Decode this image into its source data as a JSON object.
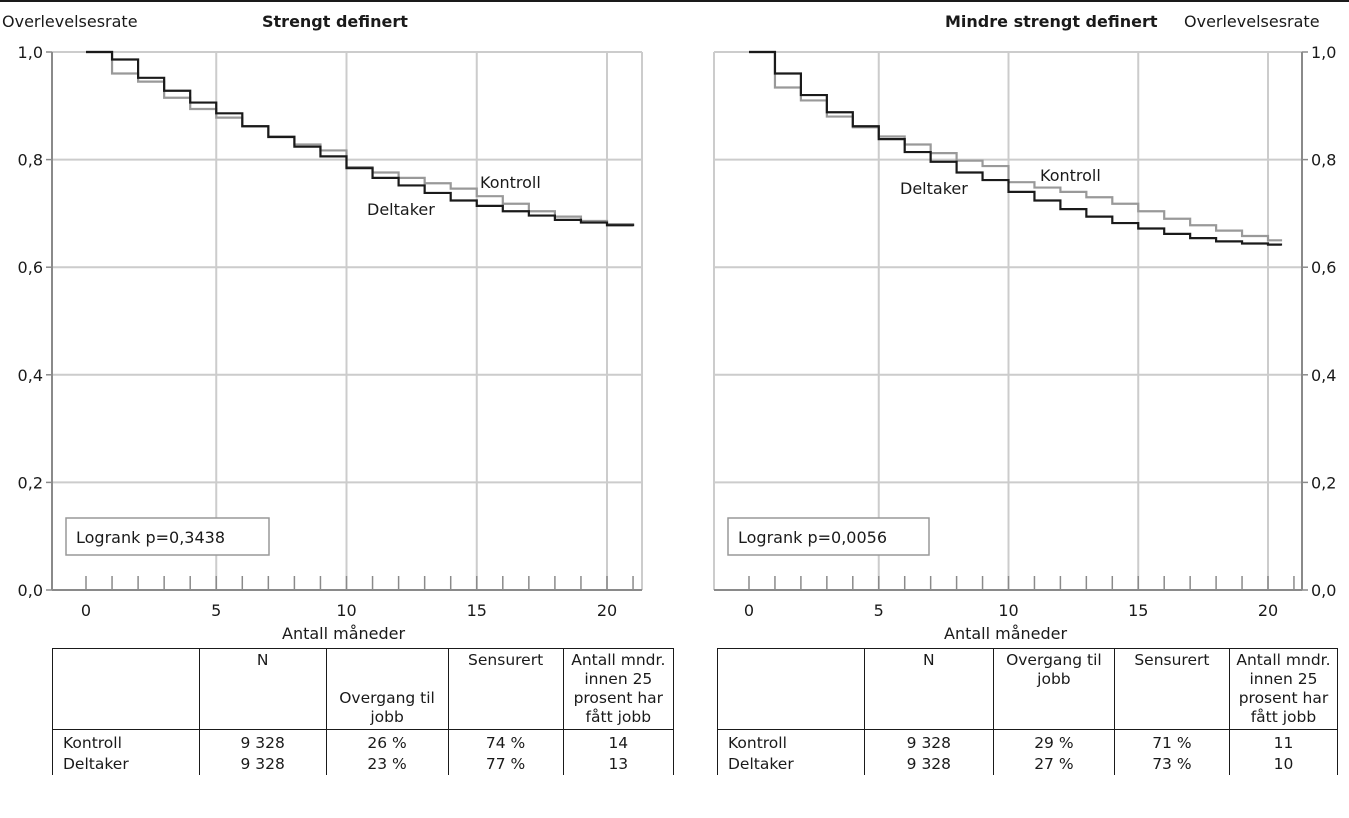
{
  "chart_data": [
    {
      "type": "line",
      "title": "Strengt definert",
      "ylabel": "Overlevelsesrate",
      "xlabel": "Antall måneder",
      "xlim": [
        -1,
        21
      ],
      "ylim": [
        0,
        1.0
      ],
      "xticks": [
        0,
        5,
        10,
        15,
        20
      ],
      "xtick_labels": [
        "0",
        "5",
        "10",
        "15",
        "20"
      ],
      "yticks": [
        0,
        0.2,
        0.4,
        0.6,
        0.8,
        1.0
      ],
      "ytick_labels": [
        "0,0",
        "0,2",
        "0,4",
        "0,6",
        "0,8",
        "1,0"
      ],
      "grid": true,
      "series": [
        {
          "name": "Kontroll",
          "color": "#999999",
          "x": [
            0,
            1,
            2,
            3,
            4,
            5,
            6,
            7,
            8,
            9,
            10,
            11,
            12,
            13,
            14,
            15,
            16,
            17,
            18,
            19,
            20,
            21
          ],
          "y": [
            1.0,
            0.96,
            0.945,
            0.915,
            0.894,
            0.878,
            0.862,
            0.843,
            0.828,
            0.817,
            0.786,
            0.776,
            0.766,
            0.756,
            0.746,
            0.732,
            0.718,
            0.704,
            0.694,
            0.686,
            0.68,
            0.677
          ]
        },
        {
          "name": "Deltaker",
          "color": "#1a1a1a",
          "x": [
            0,
            1,
            2,
            3,
            4,
            5,
            6,
            7,
            8,
            9,
            10,
            11,
            12,
            13,
            14,
            15,
            16,
            17,
            18,
            19,
            20,
            21
          ],
          "y": [
            1.0,
            0.986,
            0.952,
            0.928,
            0.906,
            0.886,
            0.862,
            0.842,
            0.824,
            0.806,
            0.784,
            0.766,
            0.752,
            0.738,
            0.724,
            0.714,
            0.704,
            0.696,
            0.688,
            0.683,
            0.678,
            0.676
          ]
        }
      ],
      "annotations": {
        "kontroll": "Kontroll",
        "deltaker": "Deltaker",
        "logrank": "Logrank p=0,3438"
      }
    },
    {
      "type": "line",
      "title": "Mindre strengt definert",
      "ylabel": "Overlevelsesrate",
      "xlabel": "Antall måneder",
      "xlim": [
        -1,
        21
      ],
      "ylim": [
        0,
        1.0
      ],
      "xticks": [
        0,
        5,
        10,
        15,
        20
      ],
      "xtick_labels": [
        "0",
        "5",
        "10",
        "15",
        "20"
      ],
      "yticks": [
        0,
        0.2,
        0.4,
        0.6,
        0.8,
        1.0
      ],
      "ytick_labels": [
        "0,0",
        "0,2",
        "0,4",
        "0,6",
        "0,8",
        "1,0"
      ],
      "grid": true,
      "series": [
        {
          "name": "Kontroll",
          "color": "#999999",
          "x": [
            0,
            1,
            2,
            3,
            4,
            5,
            6,
            7,
            8,
            9,
            10,
            11,
            12,
            13,
            14,
            15,
            16,
            17,
            18,
            19,
            20,
            20.5
          ],
          "y": [
            1.0,
            0.934,
            0.91,
            0.88,
            0.86,
            0.843,
            0.828,
            0.812,
            0.798,
            0.788,
            0.758,
            0.748,
            0.74,
            0.73,
            0.718,
            0.704,
            0.69,
            0.678,
            0.668,
            0.658,
            0.65,
            0.648
          ]
        },
        {
          "name": "Deltaker",
          "color": "#1a1a1a",
          "x": [
            0,
            1,
            2,
            3,
            4,
            5,
            6,
            7,
            8,
            9,
            10,
            11,
            12,
            13,
            14,
            15,
            16,
            17,
            18,
            19,
            20,
            20.5
          ],
          "y": [
            1.0,
            0.96,
            0.92,
            0.888,
            0.862,
            0.838,
            0.814,
            0.796,
            0.776,
            0.762,
            0.74,
            0.724,
            0.708,
            0.694,
            0.682,
            0.672,
            0.662,
            0.654,
            0.648,
            0.644,
            0.642,
            0.64
          ]
        }
      ],
      "annotations": {
        "kontroll": "Kontroll",
        "deltaker": "Deltaker",
        "logrank": "Logrank p=0,0056"
      }
    }
  ],
  "tables": [
    {
      "headers": [
        "",
        "N",
        "Overgang til jobb",
        "Sensurert",
        "Antall mndr. innen 25 prosent har fått jobb"
      ],
      "rows": [
        {
          "label": "Kontroll",
          "n": "9 328",
          "overgang": "26 %",
          "sensurert": "74 %",
          "mndr": "14"
        },
        {
          "label": "Deltaker",
          "n": "9 328",
          "overgang": "23 %",
          "sensurert": "77 %",
          "mndr": "13"
        }
      ]
    },
    {
      "headers": [
        "",
        "N",
        "Overgang til jobb",
        "Sensurert",
        "Antall mndr. innen 25 prosent har fått jobb"
      ],
      "rows": [
        {
          "label": "Kontroll",
          "n": "9 328",
          "overgang": "29 %",
          "sensurert": "71 %",
          "mndr": "11"
        },
        {
          "label": "Deltaker",
          "n": "9 328",
          "overgang": "27 %",
          "sensurert": "73 %",
          "mndr": "10"
        }
      ]
    }
  ],
  "labels": {
    "left_ylabel": "Overlevelsesrate",
    "right_ylabel": "Overlevelsesrate",
    "left_title": "Strengt definert",
    "right_title": "Mindre strengt definert",
    "left_xlabel": "Antall måneder",
    "right_xlabel": "Antall måneder"
  }
}
